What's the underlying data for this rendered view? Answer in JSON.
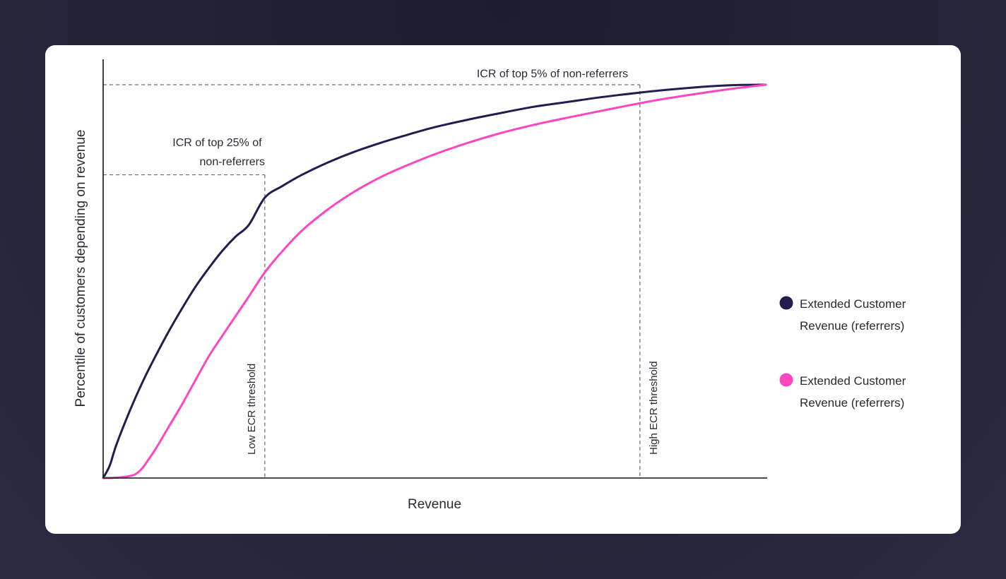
{
  "chart_data": {
    "type": "line",
    "xlabel": "Revenue",
    "ylabel": "Percentile of customers depending on revenue",
    "xlim": [
      0,
      100
    ],
    "ylim": [
      0,
      100
    ],
    "grid": false,
    "legend_position": "right",
    "colors": {
      "dark": "#221c4f",
      "pink": "#ff45c0",
      "guide": "#6b6b73",
      "axis": "#111111"
    },
    "series": [
      {
        "name": "Extended Customer Revenue (referrers)",
        "color": "#221c4f",
        "x": [
          0,
          1,
          2,
          4,
          6,
          8,
          10,
          12,
          14,
          16,
          18,
          20,
          22,
          24.4,
          27,
          30,
          34,
          38,
          42,
          46,
          50,
          55,
          60,
          65,
          70,
          75,
          81,
          85,
          90,
          95,
          100
        ],
        "y": [
          0,
          3.2,
          8.5,
          17,
          24.6,
          31.3,
          37.6,
          43.4,
          48.8,
          53.5,
          57.8,
          61.4,
          64.4,
          71.3,
          74.2,
          77.1,
          80.3,
          83,
          85.3,
          87.3,
          89.2,
          91.1,
          92.8,
          94.4,
          95.6,
          96.8,
          98,
          98.7,
          99.4,
          99.9,
          100
        ]
      },
      {
        "name": "Extended Customer Revenue (referrers)",
        "color": "#ff45c0",
        "x": [
          0,
          2,
          4,
          5,
          6,
          7,
          8,
          10,
          12,
          14,
          16,
          18,
          20,
          22,
          24.4,
          27,
          30,
          34,
          38,
          42,
          46,
          50,
          55,
          60,
          65,
          70,
          75,
          81,
          85,
          90,
          95,
          100
        ],
        "y": [
          0,
          0.1,
          0.5,
          1.1,
          2.7,
          5.1,
          7.6,
          13.3,
          19,
          25.1,
          31.1,
          36.2,
          41.2,
          46.2,
          52.3,
          57.6,
          62.9,
          68.4,
          72.9,
          76.6,
          79.6,
          82.3,
          85.2,
          87.7,
          89.8,
          91.6,
          93.3,
          95.3,
          96.5,
          97.8,
          99,
          100
        ]
      }
    ],
    "reference_lines": {
      "horizontal": [
        {
          "y": 100,
          "label": "ICR of top 5% of non-referrers"
        },
        {
          "y": 77.1,
          "label_lines": [
            "ICR of top 25% of",
            "non-referrers"
          ]
        }
      ],
      "vertical": [
        {
          "x": 24.4,
          "label": "Low ECR threshold"
        },
        {
          "x": 81,
          "label": "High ECR threshold"
        }
      ]
    }
  },
  "legend": [
    {
      "lines": [
        "Extended Customer",
        "Revenue (referrers)"
      ],
      "color": "#221c4f"
    },
    {
      "lines": [
        "Extended Customer",
        "Revenue (referrers)"
      ],
      "color": "#ff45c0"
    }
  ]
}
